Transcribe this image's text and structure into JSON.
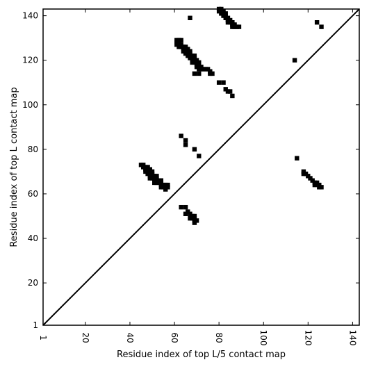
{
  "chart_data": {
    "type": "heatmap",
    "title": "",
    "xlabel": "Residue index of top L/5 contact map",
    "ylabel": "Residue index of top L contact map",
    "xlim": [
      1,
      143
    ],
    "ylim": [
      1,
      143
    ],
    "x_ticks": [
      1,
      20,
      40,
      60,
      80,
      100,
      120,
      140
    ],
    "y_ticks": [
      1,
      20,
      40,
      60,
      80,
      100,
      120,
      140
    ],
    "diagonal": true,
    "grid": false,
    "color": "#000000",
    "cell_size": 2,
    "contacts": [
      [
        67,
        139
      ],
      [
        80,
        143
      ],
      [
        81,
        143
      ],
      [
        80,
        142
      ],
      [
        81,
        142
      ],
      [
        82,
        142
      ],
      [
        81,
        141
      ],
      [
        82,
        141
      ],
      [
        83,
        141
      ],
      [
        82,
        140
      ],
      [
        83,
        140
      ],
      [
        83,
        139
      ],
      [
        84,
        139
      ],
      [
        84,
        138
      ],
      [
        85,
        138
      ],
      [
        84,
        137
      ],
      [
        85,
        137
      ],
      [
        86,
        137
      ],
      [
        86,
        136
      ],
      [
        87,
        136
      ],
      [
        86,
        135
      ],
      [
        87,
        135
      ],
      [
        88,
        135
      ],
      [
        89,
        135
      ],
      [
        124,
        137
      ],
      [
        126,
        135
      ],
      [
        61,
        129
      ],
      [
        62,
        129
      ],
      [
        63,
        129
      ],
      [
        61,
        128
      ],
      [
        62,
        128
      ],
      [
        61,
        127
      ],
      [
        62,
        127
      ],
      [
        63,
        127
      ],
      [
        62,
        126
      ],
      [
        63,
        126
      ],
      [
        64,
        126
      ],
      [
        65,
        126
      ],
      [
        64,
        125
      ],
      [
        65,
        125
      ],
      [
        66,
        125
      ],
      [
        64,
        124
      ],
      [
        65,
        124
      ],
      [
        66,
        124
      ],
      [
        67,
        124
      ],
      [
        65,
        123
      ],
      [
        66,
        123
      ],
      [
        67,
        123
      ],
      [
        66,
        122
      ],
      [
        67,
        122
      ],
      [
        68,
        122
      ],
      [
        69,
        122
      ],
      [
        67,
        121
      ],
      [
        68,
        121
      ],
      [
        69,
        121
      ],
      [
        68,
        120
      ],
      [
        69,
        120
      ],
      [
        70,
        120
      ],
      [
        68,
        119
      ],
      [
        69,
        119
      ],
      [
        70,
        119
      ],
      [
        71,
        119
      ],
      [
        70,
        118
      ],
      [
        71,
        118
      ],
      [
        70,
        117
      ],
      [
        71,
        117
      ],
      [
        72,
        117
      ],
      [
        71,
        116
      ],
      [
        72,
        116
      ],
      [
        73,
        116
      ],
      [
        74,
        116
      ],
      [
        75,
        116
      ],
      [
        76,
        115
      ],
      [
        76,
        114
      ],
      [
        77,
        114
      ],
      [
        69,
        114
      ],
      [
        71,
        114
      ],
      [
        114,
        120
      ],
      [
        80,
        110
      ],
      [
        82,
        110
      ],
      [
        83,
        107
      ],
      [
        84,
        106
      ],
      [
        85,
        106
      ],
      [
        86,
        104
      ],
      [
        63,
        86
      ],
      [
        65,
        84
      ],
      [
        65,
        82
      ],
      [
        69,
        80
      ],
      [
        71,
        77
      ],
      [
        115,
        76
      ],
      [
        45,
        73
      ],
      [
        46,
        73
      ],
      [
        46,
        72
      ],
      [
        47,
        72
      ],
      [
        48,
        72
      ],
      [
        47,
        71
      ],
      [
        48,
        71
      ],
      [
        49,
        71
      ],
      [
        47,
        70
      ],
      [
        48,
        70
      ],
      [
        49,
        70
      ],
      [
        50,
        70
      ],
      [
        48,
        69
      ],
      [
        49,
        69
      ],
      [
        50,
        69
      ],
      [
        49,
        68
      ],
      [
        50,
        68
      ],
      [
        51,
        68
      ],
      [
        52,
        68
      ],
      [
        49,
        67
      ],
      [
        50,
        67
      ],
      [
        51,
        67
      ],
      [
        52,
        67
      ],
      [
        51,
        66
      ],
      [
        52,
        66
      ],
      [
        53,
        66
      ],
      [
        54,
        66
      ],
      [
        51,
        65
      ],
      [
        52,
        65
      ],
      [
        53,
        65
      ],
      [
        54,
        65
      ],
      [
        54,
        64
      ],
      [
        55,
        64
      ],
      [
        56,
        64
      ],
      [
        57,
        64
      ],
      [
        54,
        63
      ],
      [
        55,
        63
      ],
      [
        56,
        63
      ],
      [
        57,
        63
      ],
      [
        56,
        62
      ],
      [
        118,
        70
      ],
      [
        118,
        69
      ],
      [
        119,
        69
      ],
      [
        120,
        68
      ],
      [
        121,
        67
      ],
      [
        122,
        66
      ],
      [
        123,
        65
      ],
      [
        124,
        65
      ],
      [
        123,
        64
      ],
      [
        125,
        64
      ],
      [
        125,
        63
      ],
      [
        126,
        63
      ],
      [
        63,
        54
      ],
      [
        65,
        54
      ],
      [
        65,
        51
      ],
      [
        66,
        52
      ],
      [
        67,
        51
      ],
      [
        68,
        50
      ],
      [
        69,
        50
      ],
      [
        67,
        49
      ],
      [
        68,
        49
      ],
      [
        69,
        49
      ],
      [
        69,
        48
      ],
      [
        70,
        48
      ],
      [
        69,
        47
      ]
    ]
  }
}
